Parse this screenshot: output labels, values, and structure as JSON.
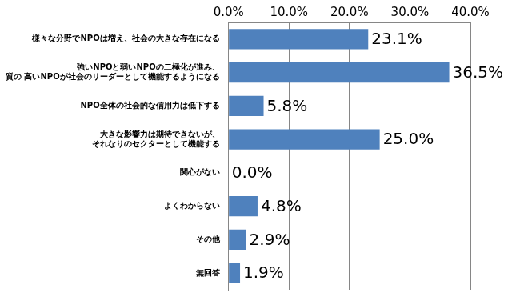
{
  "chart_data": {
    "type": "bar",
    "orientation": "horizontal",
    "categories": [
      "様々な分野でNPOは増え、社会の大きな存在になる",
      "強いNPOと弱いNPOの二極化が進み、\n質の 高いNPOが社会のリーダーとして機能するようになる",
      "NPO全体の社会的な信用力は低下する",
      "大きな影響力は期待できないが、\nそれなりのセクターとして機能する",
      "関心がない",
      "よくわからない",
      "その他",
      "無回答"
    ],
    "values": [
      23.1,
      36.5,
      5.8,
      25.0,
      0.0,
      4.8,
      2.9,
      1.9
    ],
    "value_labels": [
      "23.1%",
      "36.5%",
      "5.8%",
      "25.0%",
      "0.0%",
      "4.8%",
      "2.9%",
      "1.9%"
    ],
    "color": "#4f81bd",
    "xlim": [
      0,
      40
    ],
    "xticks": [
      {
        "value": 0,
        "label": "0.0%"
      },
      {
        "value": 10,
        "label": "10.0%"
      },
      {
        "value": 20,
        "label": "20.0%"
      },
      {
        "value": 30,
        "label": "30.0%"
      },
      {
        "value": 40,
        "label": "40.0%"
      }
    ],
    "grid": true,
    "data_labels": true
  }
}
